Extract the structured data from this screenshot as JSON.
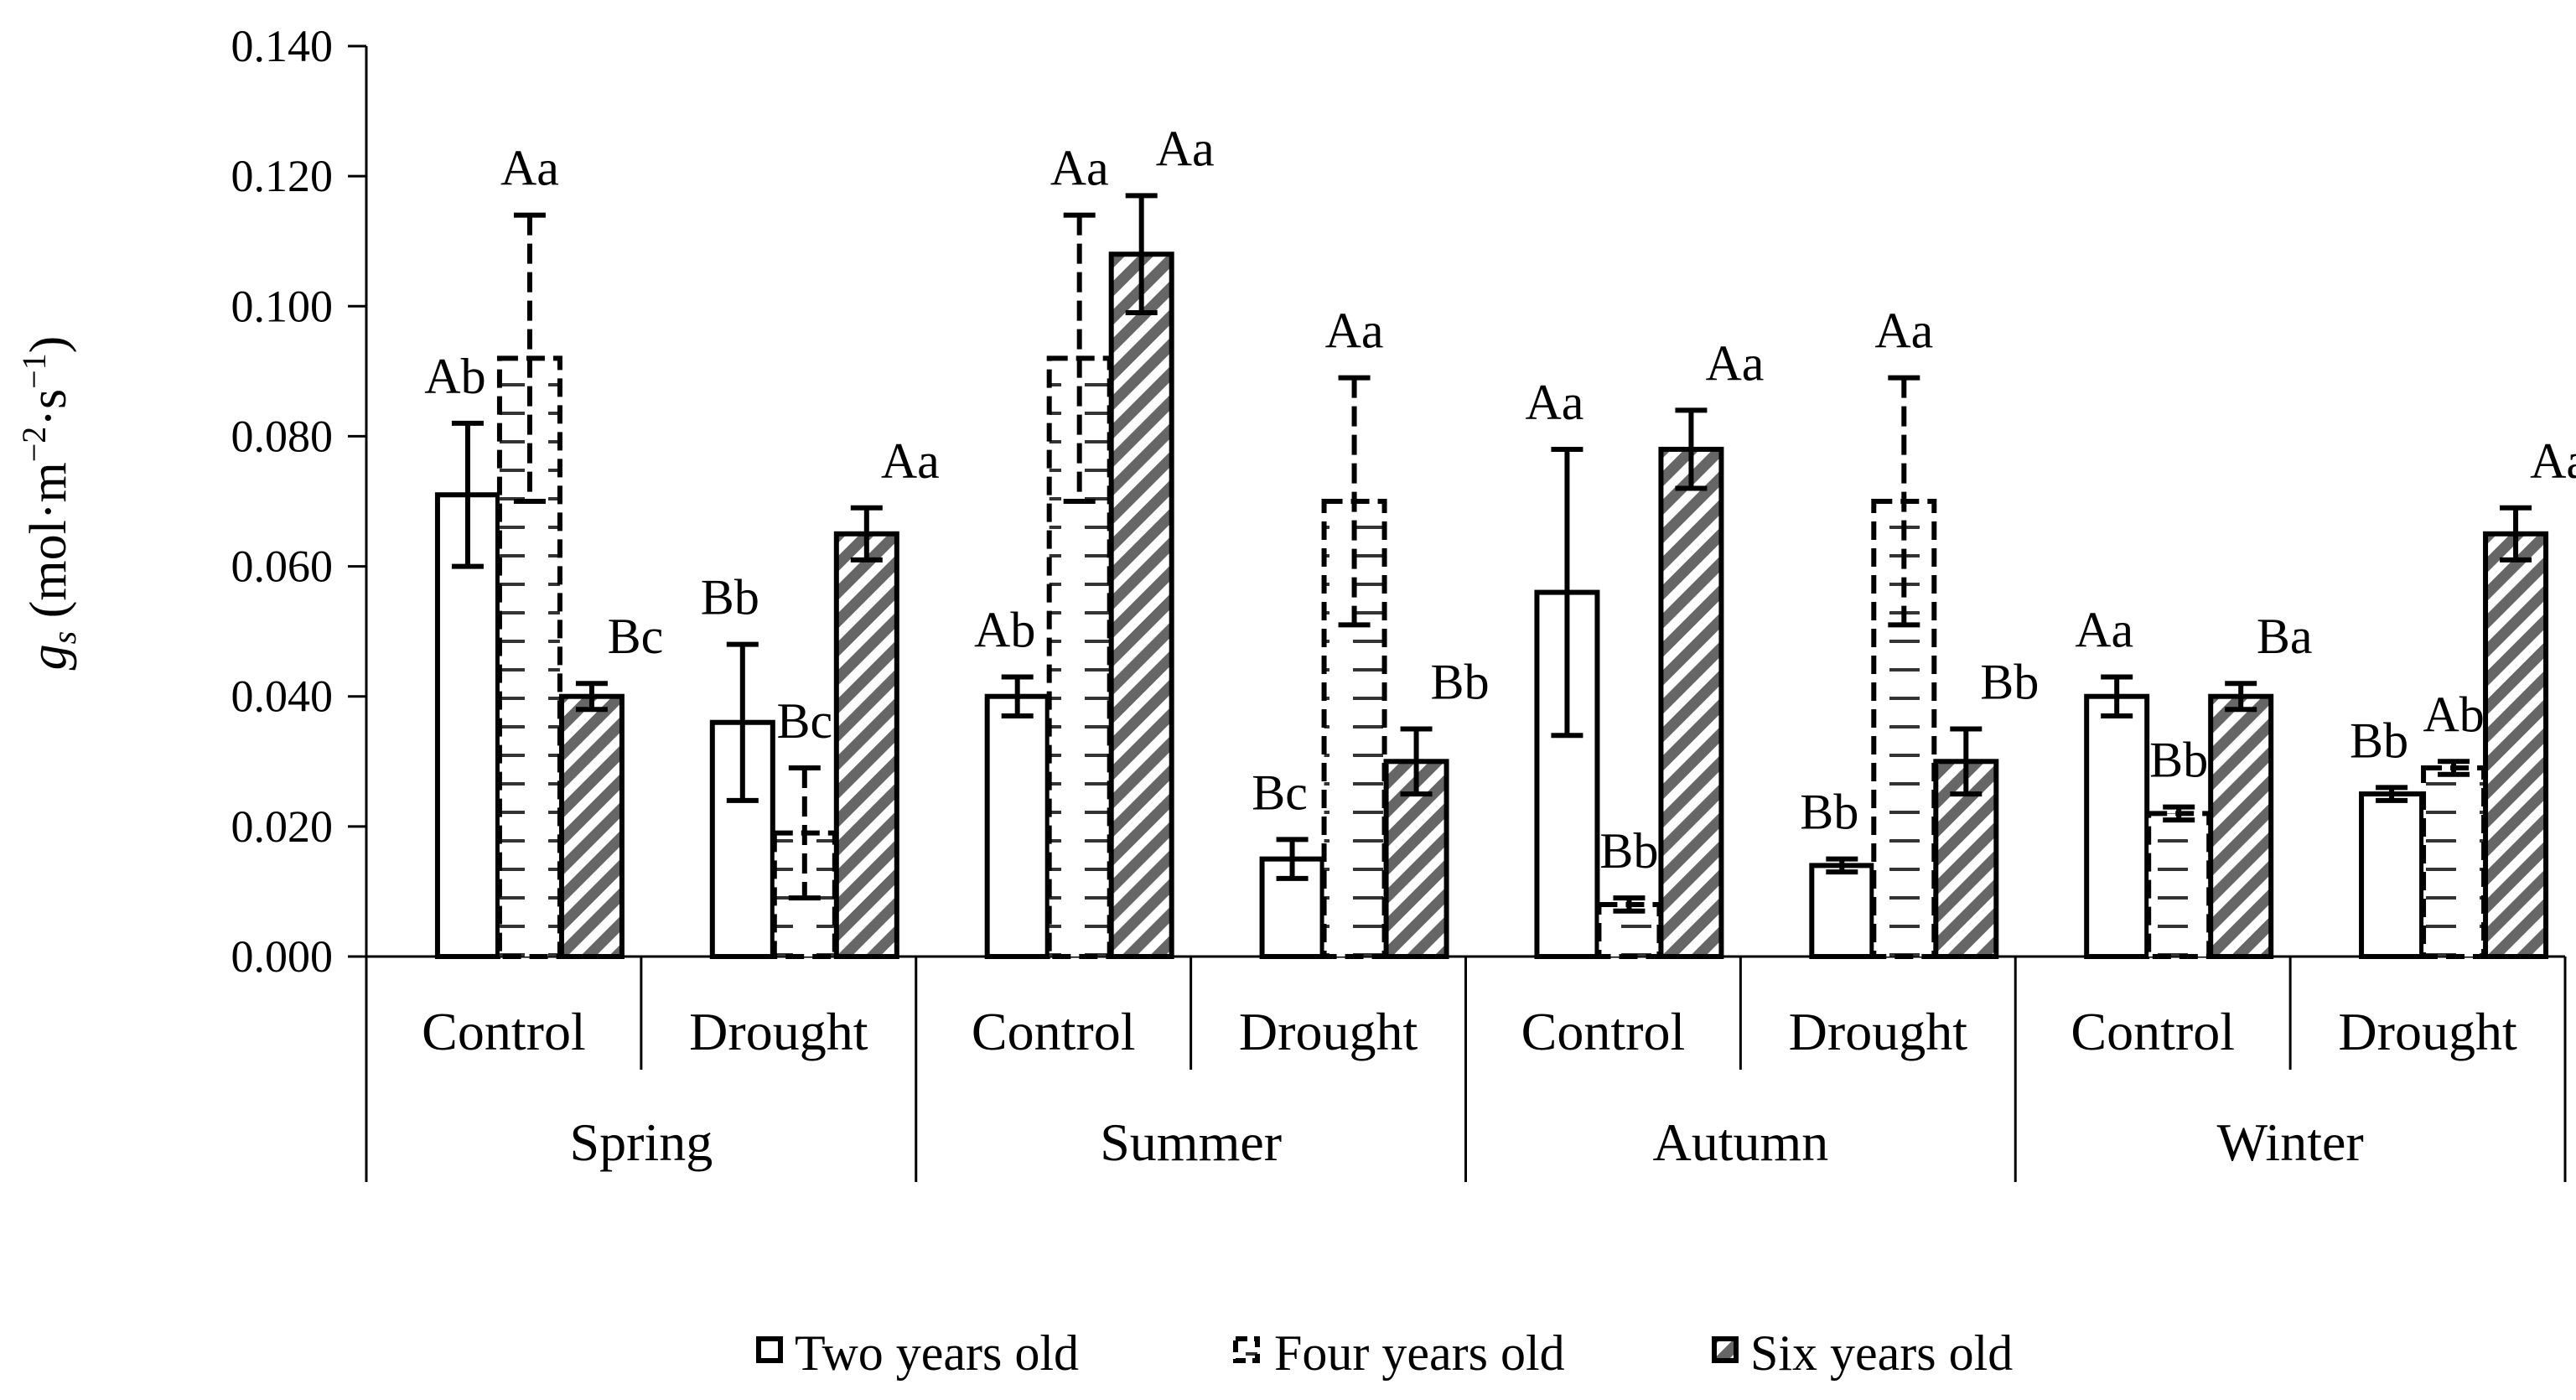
{
  "chart_data": {
    "type": "bar",
    "ylabel": {
      "main": "g",
      "sub": "s",
      "unit": " (mol·m",
      "e1": "−2",
      "mid": "·s",
      "e2": "−1",
      "close": ")"
    },
    "ylim": [
      0,
      0.14
    ],
    "yticks": [
      "0.000",
      "0.020",
      "0.040",
      "0.060",
      "0.080",
      "0.100",
      "0.120",
      "0.140"
    ],
    "groups": [
      "Spring",
      "Summer",
      "Autumn",
      "Winter"
    ],
    "categories": [
      "Control",
      "Drought",
      "Control",
      "Drought",
      "Control",
      "Drought",
      "Control",
      "Drought"
    ],
    "grid": false,
    "legend_position": "bottom",
    "series": [
      {
        "name": "Two years old",
        "values": [
          0.071,
          0.036,
          0.04,
          0.015,
          0.056,
          0.014,
          0.04,
          0.025
        ],
        "errors": [
          0.011,
          0.012,
          0.003,
          0.003,
          0.022,
          0.001,
          0.003,
          0.001
        ],
        "labels": [
          "Ab",
          "Bb",
          "Ab",
          "Bc",
          "Aa",
          "Bb",
          "Aa",
          "Bb"
        ]
      },
      {
        "name": "Four years old",
        "values": [
          0.092,
          0.019,
          0.092,
          0.07,
          0.008,
          0.07,
          0.022,
          0.029
        ],
        "errors": [
          0.022,
          0.01,
          0.022,
          0.019,
          0.001,
          0.019,
          0.001,
          0.001
        ],
        "labels": [
          "Aa",
          "Bc",
          "Aa",
          "Aa",
          "Bb",
          "Aa",
          "Bb",
          "Ab"
        ]
      },
      {
        "name": "Six years old",
        "values": [
          0.04,
          0.065,
          0.108,
          0.03,
          0.078,
          0.03,
          0.04,
          0.065
        ],
        "errors": [
          0.002,
          0.004,
          0.009,
          0.005,
          0.006,
          0.005,
          0.002,
          0.004
        ],
        "labels": [
          "Bc",
          "Aa",
          "Aa",
          "Bb",
          "Aa",
          "Bb",
          "Ba",
          "Aa"
        ]
      }
    ]
  }
}
